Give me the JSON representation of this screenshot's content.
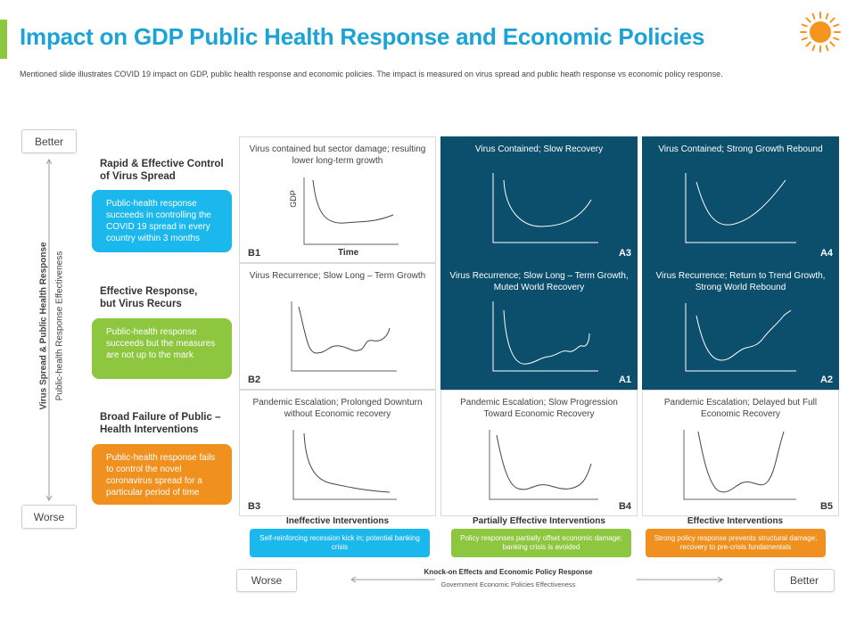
{
  "header": {
    "title": "Impact on GDP Public Health Response and Economic Policies",
    "subtitle": "Mentioned slide illustrates COVID 19 impact on GDP, public health response and economic policies. The impact is measured on virus spread and public heath response vs economic policy response."
  },
  "colors": {
    "title": "#1aa3d6",
    "accent_bar": "#8dc63f",
    "dark_cell": "#0b4f6c",
    "blue": "#1ab8ec",
    "green": "#8dc63f",
    "orange": "#f0901e",
    "sun": "#f7941d"
  },
  "vertical_axis": {
    "top_label": "Better",
    "bottom_label": "Worse",
    "title": "Virus Spread & Public Health Response",
    "subtitle": "Public-health Response Effectiveness"
  },
  "rows": [
    {
      "heading": "Rapid & Effective Control of Virus Spread",
      "description": "Public-health response succeeds in controlling the COVID 19 spread in every country within 3 months"
    },
    {
      "heading": "Effective Response, but Virus Recurs",
      "description": "Public-health response succeeds but the measures are not up to the mark"
    },
    {
      "heading": "Broad Failure of Public – Health Interventions",
      "description": "Public-health response fails to control the novel coronavirus spread for a particular period of time"
    }
  ],
  "cells": [
    {
      "code": "B1",
      "text": "Virus contained but sector damage; resulting lower long-term growth"
    },
    {
      "code": "A3",
      "text": "Virus Contained; Slow Recovery"
    },
    {
      "code": "A4",
      "text": "Virus Contained; Strong Growth Rebound"
    },
    {
      "code": "B2",
      "text": "Virus Recurrence; Slow Long – Term Growth"
    },
    {
      "code": "A1",
      "text": "Virus Recurrence; Slow Long – Term Growth, Muted World Recovery"
    },
    {
      "code": "A2",
      "text": "Virus Recurrence; Return to Trend Growth, Strong World Rebound"
    },
    {
      "code": "B3",
      "text": "Pandemic Escalation; Prolonged Downturn without Economic recovery"
    },
    {
      "code": "B4",
      "text": "Pandemic Escalation; Slow Progression Toward Economic Recovery"
    },
    {
      "code": "B5",
      "text": "Pandemic Escalation; Delayed but Full Economic Recovery"
    }
  ],
  "axis_labels": {
    "gdp": "GDP",
    "time": "Time"
  },
  "columns": [
    {
      "heading": "Ineffective Interventions",
      "description": "Self-reinforcing recession kick in; potential banking crisis"
    },
    {
      "heading": "Partially Effective Interventions",
      "description": "Policy responses partially offset economic damage; banking crisis is avoided"
    },
    {
      "heading": "Effective Interventions",
      "description": "Strong policy response prevents structural damage; recovery to pre-crisis fundamentals"
    }
  ],
  "horizontal_axis": {
    "title": "Knock-on Effects and Economic Policy Response",
    "subtitle": "Government Economic Policies Effectiveness",
    "left_label": "Worse",
    "right_label": "Better"
  }
}
